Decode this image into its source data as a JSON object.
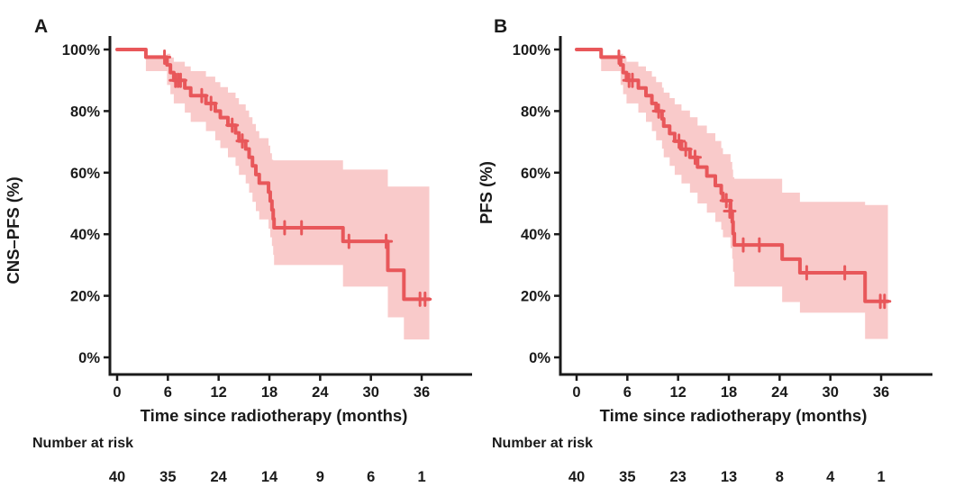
{
  "figure": {
    "background": "#ffffff",
    "curve_color": "#e8575a",
    "band_color": "#f9caca",
    "axis_color": "#1a1a1a",
    "panels": [
      {
        "id": "A",
        "letter": "A",
        "y_axis_label": "CNS–PFS (%)",
        "x_axis_label": "Time since radiotherapy (months)",
        "risk_table_label": "Number at risk",
        "y_tick_labels": [
          "100%",
          "80%",
          "60%",
          "40%",
          "20%",
          "0%"
        ],
        "x_tick_labels": [
          "0",
          "6",
          "12",
          "18",
          "24",
          "30",
          "36"
        ],
        "chart_data": {
          "type": "line",
          "subtype": "kaplan-meier-step-with-ci-band",
          "title": "",
          "xlabel": "Time since radiotherapy (months)",
          "ylabel": "CNS–PFS (%)",
          "x_unit": "months",
          "xlim": [
            0,
            42
          ],
          "ylim": [
            0,
            100
          ],
          "x_tick_values": [
            0,
            6,
            12,
            18,
            24,
            30,
            36
          ],
          "y_tick_values": [
            100,
            80,
            60,
            40,
            20,
            0
          ],
          "grid": "off",
          "legend": "none",
          "steps_columns": [
            "time_months",
            "survival_pct",
            "ci_lower_pct",
            "ci_upper_pct"
          ],
          "steps": [
            [
              0,
              100,
              100,
              100
            ],
            [
              3.4,
              97.5,
              93,
              98.2
            ],
            [
              5.9,
              95,
              88.5,
              98.6
            ],
            [
              6.3,
              92.5,
              85.5,
              97.4
            ],
            [
              6.7,
              90,
              82.5,
              96
            ],
            [
              8.0,
              87.5,
              79.5,
              94.5
            ],
            [
              8.7,
              85,
              76.5,
              93
            ],
            [
              10.5,
              82.5,
              73.5,
              91.2
            ],
            [
              11.6,
              80,
              70.5,
              89.4
            ],
            [
              12.2,
              77.9,
              68,
              87.8
            ],
            [
              13.1,
              75.4,
              65,
              86
            ],
            [
              14.0,
              72.9,
              62.2,
              84.2
            ],
            [
              14.4,
              70.3,
              59.3,
              82.2
            ],
            [
              15.2,
              67.7,
              56.5,
              80.2
            ],
            [
              15.6,
              65,
              53.5,
              78
            ],
            [
              16.0,
              62.2,
              50.5,
              75.8
            ],
            [
              16.4,
              59.4,
              47.5,
              73.5
            ],
            [
              16.8,
              56.6,
              44.8,
              71.2
            ],
            [
              17.9,
              53.7,
              41.8,
              68.8
            ],
            [
              18.1,
              50.8,
              39,
              66.3
            ],
            [
              18.3,
              47.9,
              36.2,
              64.2
            ],
            [
              18.45,
              45,
              33.3,
              64
            ],
            [
              18.55,
              42.1,
              30,
              64
            ],
            [
              26.7,
              37.7,
              23,
              61
            ],
            [
              32.0,
              28.3,
              13,
              55.5
            ],
            [
              33.9,
              18.9,
              5.8,
              55.5
            ]
          ],
          "end_time": 36.9,
          "censor_marks_t_s": [
            [
              5.6,
              97.5
            ],
            [
              6.9,
              90
            ],
            [
              7.2,
              90
            ],
            [
              7.5,
              90
            ],
            [
              10.0,
              85
            ],
            [
              11.1,
              82.5
            ],
            [
              13.6,
              75.4
            ],
            [
              14.8,
              70.3
            ],
            [
              19.8,
              42.1
            ],
            [
              21.8,
              42.1
            ],
            [
              27.4,
              37.7
            ],
            [
              31.8,
              37.7
            ],
            [
              35.8,
              18.9
            ],
            [
              36.4,
              18.9
            ]
          ],
          "number_at_risk": {
            "times": [
              0,
              6,
              12,
              18,
              24,
              30,
              36
            ],
            "counts": [
              "40",
              "35",
              "24",
              "14",
              "9",
              "6",
              "1"
            ]
          }
        }
      },
      {
        "id": "B",
        "letter": "B",
        "y_axis_label": "PFS (%)",
        "x_axis_label": "Time since radiotherapy (months)",
        "risk_table_label": "Number at risk",
        "y_tick_labels": [
          "100%",
          "80%",
          "60%",
          "40%",
          "20%",
          "0%"
        ],
        "x_tick_labels": [
          "0",
          "6",
          "12",
          "18",
          "24",
          "30",
          "36"
        ],
        "chart_data": {
          "type": "line",
          "subtype": "kaplan-meier-step-with-ci-band",
          "title": "",
          "xlabel": "Time since radiotherapy (months)",
          "ylabel": "PFS (%)",
          "x_unit": "months",
          "xlim": [
            0,
            42
          ],
          "ylim": [
            0,
            100
          ],
          "x_tick_values": [
            0,
            6,
            12,
            18,
            24,
            30,
            36
          ],
          "y_tick_values": [
            100,
            80,
            60,
            40,
            20,
            0
          ],
          "grid": "off",
          "legend": "none",
          "steps_columns": [
            "time_months",
            "survival_pct",
            "ci_lower_pct",
            "ci_upper_pct"
          ],
          "steps": [
            [
              0,
              100,
              100,
              100
            ],
            [
              2.9,
              97.5,
              93,
              98.2
            ],
            [
              5.2,
              95,
              88.5,
              98.6
            ],
            [
              5.5,
              92.5,
              85.5,
              97.4
            ],
            [
              5.9,
              90,
              82.5,
              96
            ],
            [
              7.3,
              87.5,
              79.5,
              94.5
            ],
            [
              8.2,
              85,
              76.5,
              93
            ],
            [
              8.9,
              82.5,
              73.5,
              91.2
            ],
            [
              9.4,
              80,
              70.5,
              89.4
            ],
            [
              10.1,
              77.5,
              67.8,
              87.6
            ],
            [
              10.3,
              75.1,
              65,
              86
            ],
            [
              11.0,
              72.7,
              62.2,
              84.2
            ],
            [
              11.6,
              70.2,
              59.3,
              82.2
            ],
            [
              12.4,
              67.6,
              56.5,
              80.2
            ],
            [
              13.4,
              65,
              53.5,
              78
            ],
            [
              14.3,
              61.8,
              50,
              75.3
            ],
            [
              15.4,
              58.9,
              47,
              72.8
            ],
            [
              16.4,
              55.8,
              44,
              70.3
            ],
            [
              17.1,
              53.3,
              41.5,
              68
            ],
            [
              17.3,
              50.9,
              39,
              66
            ],
            [
              18.2,
              47.5,
              35.5,
              63.5
            ],
            [
              18.4,
              44.0,
              32,
              61
            ],
            [
              18.5,
              40.2,
              27.8,
              58.5
            ],
            [
              18.65,
              36.5,
              23,
              58
            ],
            [
              24.3,
              31.9,
              18,
              53.5
            ],
            [
              26.4,
              27.5,
              14.5,
              50.5
            ],
            [
              34.1,
              18.2,
              6,
              49.5
            ]
          ],
          "end_time": 36.8,
          "censor_marks_t_s": [
            [
              5.0,
              97.5
            ],
            [
              6.2,
              90
            ],
            [
              6.6,
              90
            ],
            [
              9.7,
              80
            ],
            [
              12.1,
              70.2
            ],
            [
              12.9,
              67.6
            ],
            [
              14.0,
              65
            ],
            [
              17.7,
              50.9
            ],
            [
              18.1,
              47.5
            ],
            [
              19.7,
              36.5
            ],
            [
              21.6,
              36.5
            ],
            [
              27.2,
              27.5
            ],
            [
              31.7,
              27.5
            ],
            [
              35.9,
              18.2
            ],
            [
              36.4,
              18.2
            ]
          ],
          "number_at_risk": {
            "times": [
              0,
              6,
              12,
              18,
              24,
              30,
              36
            ],
            "counts": [
              "40",
              "35",
              "23",
              "13",
              "8",
              "4",
              "1"
            ]
          }
        }
      }
    ]
  }
}
